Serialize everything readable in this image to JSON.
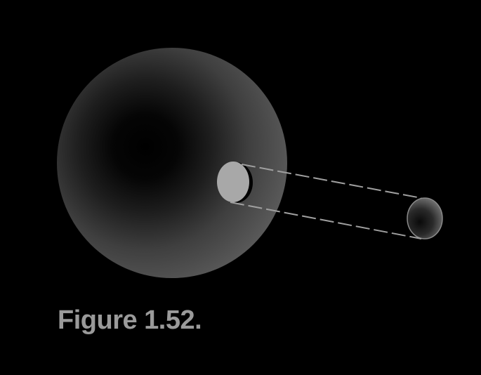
{
  "figure": {
    "caption": "Figure 1.52.",
    "colors": {
      "background": "#000000",
      "caption_text": "#9a9a9a",
      "sphere_rim": "#5a5a5a",
      "sphere_core": "#000000",
      "near_disc_face": "#a8a8a8",
      "disc_shadow": "#000000",
      "projection_lines": "#a0a0a0",
      "far_disc_rim": "#9a9a9a",
      "far_disc_core": "#111111"
    }
  }
}
